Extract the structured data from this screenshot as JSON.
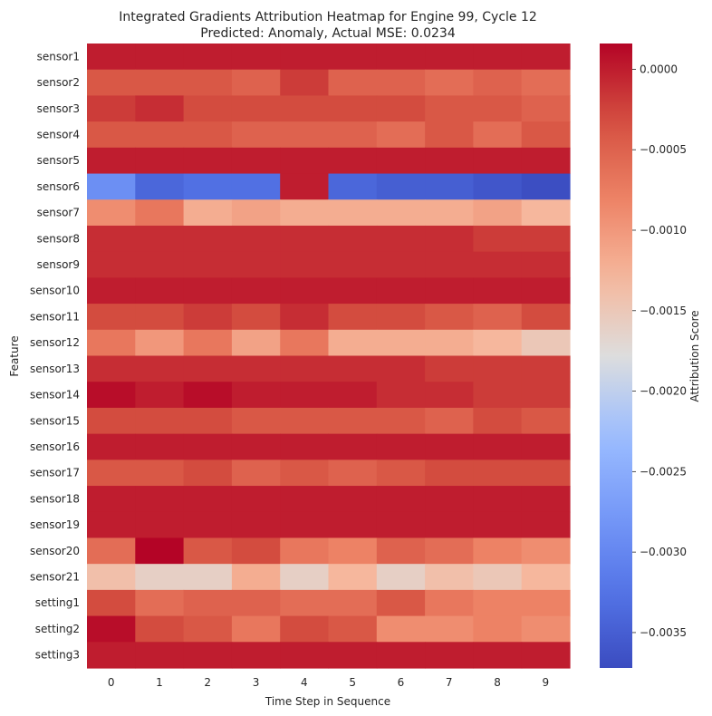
{
  "chart_data": {
    "type": "heatmap",
    "title_line1": "Integrated Gradients Attribution Heatmap for Engine 99, Cycle 12",
    "title_line2": "Predicted: Anomaly, Actual MSE: 0.0234",
    "xlabel": "Time Step in Sequence",
    "ylabel": "Feature",
    "x_categories": [
      "0",
      "1",
      "2",
      "3",
      "4",
      "5",
      "6",
      "7",
      "8",
      "9"
    ],
    "y_categories": [
      "sensor1",
      "sensor2",
      "sensor3",
      "sensor4",
      "sensor5",
      "sensor6",
      "sensor7",
      "sensor8",
      "sensor9",
      "sensor10",
      "sensor11",
      "sensor12",
      "sensor13",
      "sensor14",
      "sensor15",
      "sensor16",
      "sensor17",
      "sensor18",
      "sensor19",
      "sensor20",
      "sensor21",
      "setting1",
      "setting2",
      "setting3"
    ],
    "values": [
      [
        0.0,
        0.0,
        0.0,
        0.0,
        0.0,
        0.0,
        0.0,
        0.0,
        0.0,
        0.0
      ],
      [
        -0.0004,
        -0.0004,
        -0.0004,
        -0.0005,
        -0.0002,
        -0.0005,
        -0.0005,
        -0.0006,
        -0.0005,
        -0.0006
      ],
      [
        -0.0002,
        -0.0001,
        -0.0003,
        -0.0003,
        -0.0003,
        -0.0003,
        -0.0003,
        -0.0004,
        -0.0004,
        -0.0005
      ],
      [
        -0.0004,
        -0.0004,
        -0.0004,
        -0.0005,
        -0.0005,
        -0.0005,
        -0.0006,
        -0.0004,
        -0.0006,
        -0.0004
      ],
      [
        0.0,
        0.0,
        0.0,
        0.0,
        0.0,
        0.0,
        0.0,
        0.0,
        0.0,
        0.0
      ],
      [
        -0.0029,
        -0.0034,
        -0.0033,
        -0.0033,
        0.0,
        -0.0034,
        -0.0035,
        -0.0035,
        -0.0036,
        -0.0037
      ],
      [
        -0.0009,
        -0.0007,
        -0.0012,
        -0.0011,
        -0.0012,
        -0.0012,
        -0.0012,
        -0.0012,
        -0.0011,
        -0.0013
      ],
      [
        -0.0001,
        -0.0001,
        -0.0001,
        -0.0001,
        -0.0001,
        -0.0001,
        -0.0001,
        -0.0001,
        -0.0002,
        -0.0002
      ],
      [
        -0.0001,
        -0.0001,
        -0.0001,
        -0.0001,
        -0.0001,
        -0.0001,
        -0.0001,
        -0.0001,
        -0.0001,
        -0.0001
      ],
      [
        0.0,
        0.0,
        0.0,
        0.0,
        0.0,
        0.0,
        0.0,
        0.0,
        0.0,
        0.0
      ],
      [
        -0.0003,
        -0.0003,
        -0.0002,
        -0.0003,
        -0.0001,
        -0.0003,
        -0.0003,
        -0.0004,
        -0.0005,
        -0.0003
      ],
      [
        -0.0007,
        -0.001,
        -0.0007,
        -0.0011,
        -0.0007,
        -0.0012,
        -0.0012,
        -0.0012,
        -0.0013,
        -0.0015
      ],
      [
        -0.0001,
        -0.0001,
        -0.0001,
        -0.0001,
        -0.0001,
        -0.0001,
        -0.0001,
        -0.0002,
        -0.0002,
        -0.0002
      ],
      [
        0.0001,
        0.0,
        0.0001,
        0.0,
        0.0,
        0.0,
        -0.0001,
        -0.0001,
        -0.0002,
        -0.0002
      ],
      [
        -0.0003,
        -0.0003,
        -0.0003,
        -0.0004,
        -0.0004,
        -0.0004,
        -0.0004,
        -0.0005,
        -0.0003,
        -0.0004
      ],
      [
        0.0,
        0.0,
        0.0,
        0.0,
        0.0,
        0.0,
        0.0,
        0.0,
        0.0,
        0.0
      ],
      [
        -0.0004,
        -0.0004,
        -0.0003,
        -0.0005,
        -0.0004,
        -0.0005,
        -0.0004,
        -0.0003,
        -0.0003,
        -0.0003
      ],
      [
        0.0,
        0.0,
        0.0,
        0.0,
        0.0,
        0.0,
        0.0,
        0.0,
        0.0,
        0.0
      ],
      [
        0.0,
        0.0,
        0.0,
        0.0,
        0.0,
        0.0,
        0.0,
        0.0,
        0.0,
        0.0
      ],
      [
        -0.0006,
        0.0002,
        -0.0004,
        -0.0003,
        -0.0007,
        -0.0008,
        -0.0005,
        -0.0006,
        -0.0008,
        -0.0009
      ],
      [
        -0.0014,
        -0.0016,
        -0.0016,
        -0.0012,
        -0.0016,
        -0.0013,
        -0.0016,
        -0.0014,
        -0.0015,
        -0.0013
      ],
      [
        -0.0003,
        -0.0006,
        -0.0005,
        -0.0005,
        -0.0006,
        -0.0006,
        -0.0004,
        -0.0007,
        -0.0008,
        -0.0008
      ],
      [
        0.0001,
        -0.0003,
        -0.0004,
        -0.0007,
        -0.0003,
        -0.0004,
        -0.0009,
        -0.0009,
        -0.0008,
        -0.0009
      ],
      [
        0.0,
        0.0,
        0.0,
        0.0,
        0.0,
        0.0,
        0.0,
        0.0,
        0.0,
        0.0
      ]
    ],
    "vmin": -0.00372,
    "vmax": 0.00016,
    "colormap": "coolwarm",
    "colorbar": {
      "label": "Attribution Score",
      "ticks": [
        0.0,
        -0.0005,
        -0.001,
        -0.0015,
        -0.002,
        -0.0025,
        -0.003,
        -0.0035
      ],
      "tick_labels": [
        "0.0000",
        "−0.0005",
        "−0.0010",
        "−0.0015",
        "−0.0020",
        "−0.0025",
        "−0.0030",
        "−0.0035"
      ]
    }
  }
}
